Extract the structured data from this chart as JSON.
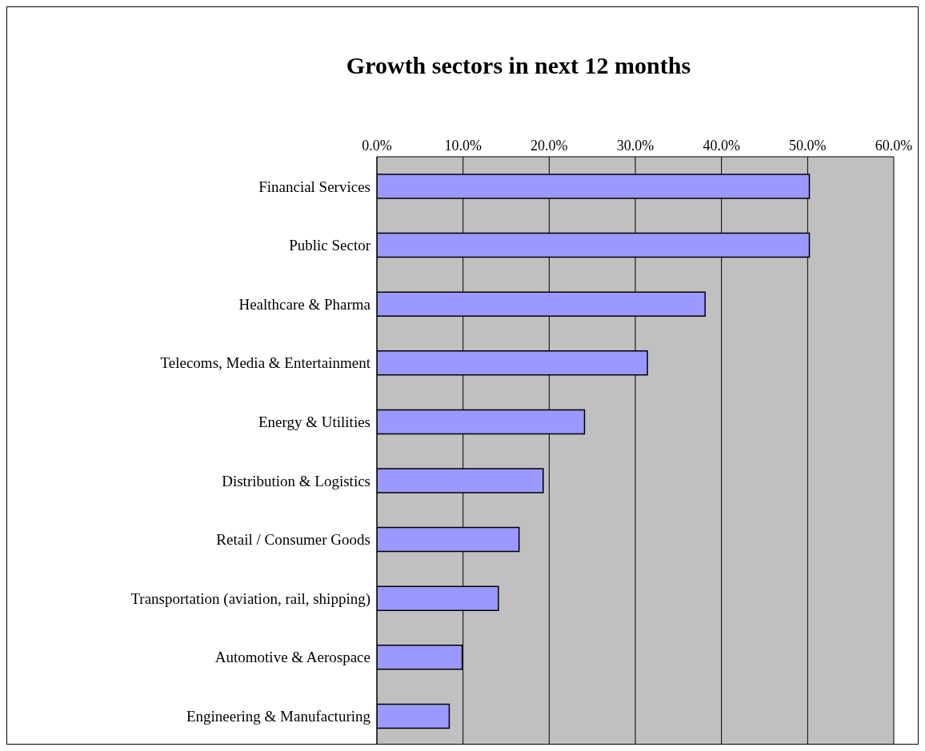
{
  "chart_data": {
    "type": "bar",
    "orientation": "horizontal",
    "title": "Growth sectors in next 12 months",
    "categories": [
      "Financial Services",
      "Public Sector",
      "Healthcare & Pharma",
      "Telecoms, Media & Entertainment",
      "Energy & Utilities",
      "Distribution & Logistics",
      "Retail / Consumer Goods",
      "Transportation (aviation, rail, shipping)",
      "Automotive & Aerospace",
      "Engineering & Manufacturing"
    ],
    "values": [
      50.2,
      50.2,
      38.1,
      31.4,
      24.1,
      19.3,
      16.5,
      14.1,
      9.9,
      8.4
    ],
    "color": "#9999ff",
    "xlim": [
      0,
      60
    ],
    "xticks": [
      {
        "value": 0,
        "label": "0.0%"
      },
      {
        "value": 10,
        "label": "10.0%"
      },
      {
        "value": 20,
        "label": "20.0%"
      },
      {
        "value": 30,
        "label": "30.0%"
      },
      {
        "value": 40,
        "label": "40.0%"
      },
      {
        "value": 50,
        "label": "50.0%"
      },
      {
        "value": 60,
        "label": "60.0%"
      }
    ],
    "grid": "x"
  }
}
